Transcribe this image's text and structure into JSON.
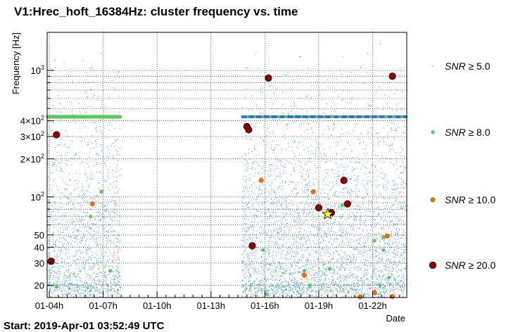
{
  "chart_data": {
    "type": "scatter",
    "title": "V1:Hrec_hoft_16384Hz: cluster frequency vs. time",
    "xlabel": "Date",
    "ylabel": "Frequency [Hz]",
    "yscale": "log",
    "ylim": [
      16,
      2000
    ],
    "xlim_hours": [
      3.88,
      23.9
    ],
    "grid": true,
    "x_tick_labels": [
      "01-04h",
      "01-07h",
      "01-10h",
      "01-13h",
      "01-16h",
      "01-19h",
      "01-22h"
    ],
    "x_tick_hours": [
      4,
      7,
      10,
      13,
      16,
      19,
      22
    ],
    "y_tick_labels": [
      "20",
      "30",
      "40",
      "50",
      "10^2",
      "2×10^2",
      "3×10^2",
      "4×10^2",
      "10^3"
    ],
    "y_tick_values": [
      20,
      30,
      40,
      50,
      100,
      200,
      300,
      400,
      1000
    ],
    "start_label": "Start: 2019-Apr-01 03:52:49 UTC",
    "legend_position": "right",
    "legend": [
      {
        "label": "SNR ≥ 5.0",
        "color": "#2e8fb3"
      },
      {
        "label": "SNR ≥ 8.0",
        "color": "#5cc85c"
      },
      {
        "label": "SNR ≥ 10.0",
        "color": "#e07010"
      },
      {
        "label": "SNR ≥ 20.0",
        "color": "#8b0000"
      }
    ],
    "series": [
      {
        "name": "SNR ≥ 8.0",
        "color": "#5cc85c",
        "points": [
          [
            4.4,
            19.5
          ],
          [
            6.3,
            70
          ],
          [
            6.9,
            110
          ],
          [
            7.4,
            26
          ],
          [
            15.9,
            38
          ],
          [
            16.1,
            17
          ],
          [
            18.2,
            26
          ],
          [
            18.5,
            20
          ],
          [
            19.6,
            27
          ],
          [
            20.3,
            86
          ],
          [
            22.1,
            45
          ],
          [
            22.4,
            20
          ],
          [
            22.6,
            48
          ],
          [
            22.6,
            38
          ],
          [
            22.9,
            23
          ]
        ]
      },
      {
        "name": "SNR ≥ 10.0",
        "color": "#e07010",
        "points": [
          [
            6.4,
            88
          ],
          [
            15.8,
            135
          ],
          [
            18.2,
            24
          ],
          [
            18.7,
            110
          ],
          [
            21.3,
            16.2
          ],
          [
            22.1,
            17.5
          ],
          [
            22.8,
            49
          ],
          [
            23.1,
            16.3
          ]
        ]
      },
      {
        "name": "SNR ≥ 20.0",
        "color": "#8b0000",
        "points": [
          [
            4.1,
            31
          ],
          [
            4.4,
            310
          ],
          [
            15.0,
            360
          ],
          [
            15.1,
            340
          ],
          [
            15.3,
            41
          ],
          [
            16.2,
            870
          ],
          [
            19.0,
            82
          ],
          [
            19.7,
            75
          ],
          [
            20.4,
            135
          ],
          [
            20.6,
            88
          ],
          [
            23.1,
            900
          ]
        ]
      }
    ],
    "marker": {
      "name": "loudest-trigger-star",
      "x": 19.5,
      "y": 73,
      "color": "#ffff00"
    }
  }
}
